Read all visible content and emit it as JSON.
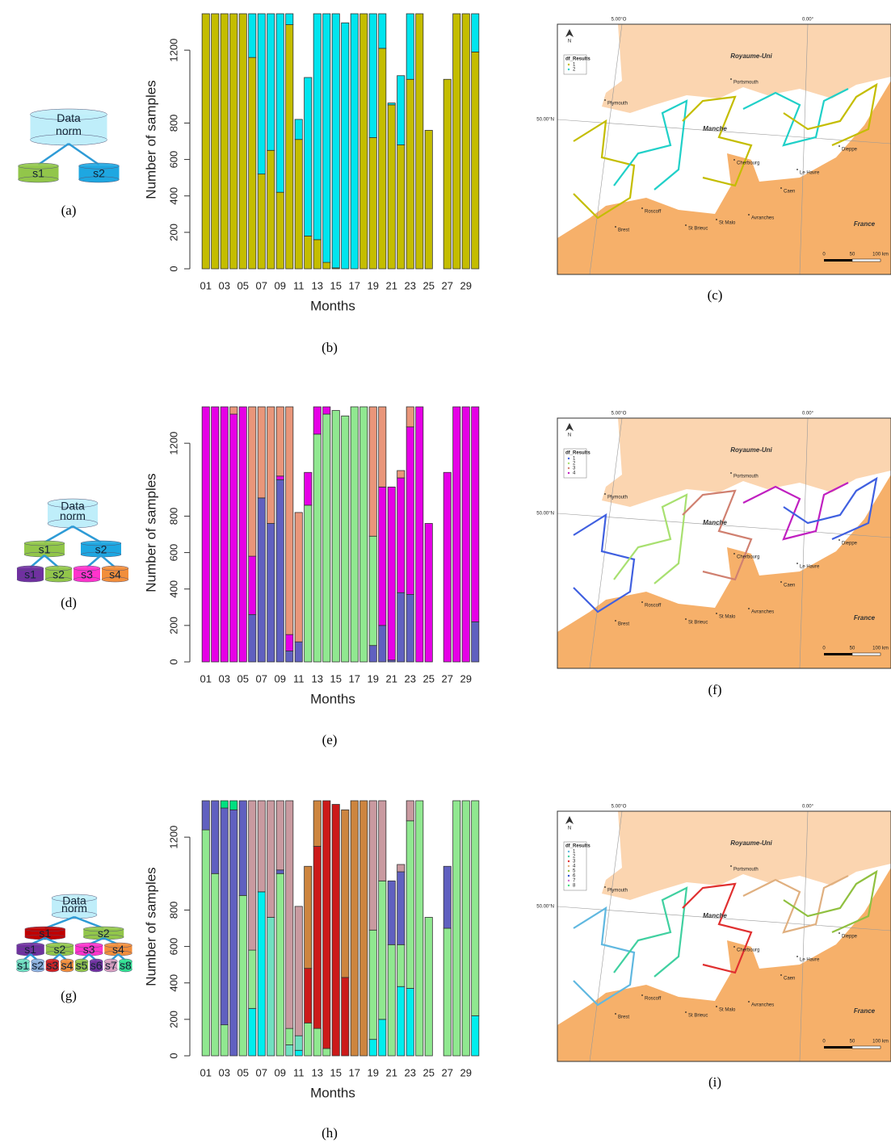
{
  "chart_data": [
    {
      "type": "bar",
      "stacked": true,
      "caption": "(b)",
      "x_label": "Months",
      "y_label": "Number of samples",
      "categories": [
        "01",
        null,
        "03",
        null,
        "05",
        null,
        "07",
        null,
        "09",
        null,
        "11",
        null,
        "13",
        null,
        "15",
        null,
        "17",
        null,
        "19",
        null,
        "21",
        null,
        "23",
        null,
        "25",
        null,
        "27",
        null,
        "29",
        null
      ],
      "ylim": [
        0,
        1400
      ],
      "yticks": [
        0,
        200,
        400,
        600,
        800,
        1200
      ],
      "series": [
        {
          "color": "#c4bd00",
          "values": [
            1400,
            1400,
            1400,
            1400,
            1400,
            1160,
            520,
            650,
            420,
            1340,
            710,
            180,
            160,
            35,
            5,
            0,
            0,
            1400,
            720,
            1210,
            900,
            680,
            1040,
            1400,
            760,
            0,
            1040,
            1400,
            1400,
            1190
          ]
        },
        {
          "color": "#00e5ee",
          "values": [
            0,
            0,
            0,
            0,
            0,
            240,
            880,
            750,
            980,
            60,
            110,
            870,
            1240,
            1365,
            1395,
            1350,
            1400,
            0,
            680,
            190,
            10,
            380,
            360,
            0,
            0,
            0,
            0,
            0,
            0,
            210
          ]
        }
      ]
    },
    {
      "type": "bar",
      "stacked": true,
      "caption": "(e)",
      "x_label": "Months",
      "y_label": "Number of samples",
      "categories": [
        "01",
        null,
        "03",
        null,
        "05",
        null,
        "07",
        null,
        "09",
        null,
        "11",
        null,
        "13",
        null,
        "15",
        null,
        "17",
        null,
        "19",
        null,
        "21",
        null,
        "23",
        null,
        "25",
        null,
        "27",
        null,
        "29",
        null
      ],
      "ylim": [
        0,
        1400
      ],
      "yticks": [
        0,
        200,
        400,
        600,
        800,
        1200
      ],
      "series": [
        {
          "color": "#6060c0",
          "values": [
            0,
            0,
            0,
            0,
            0,
            260,
            900,
            760,
            1000,
            60,
            110,
            0,
            0,
            0,
            0,
            0,
            0,
            0,
            90,
            200,
            10,
            380,
            370,
            0,
            0,
            0,
            0,
            0,
            0,
            220
          ]
        },
        {
          "color": "#90e890",
          "values": [
            0,
            0,
            0,
            0,
            0,
            0,
            0,
            0,
            0,
            0,
            0,
            860,
            1250,
            1360,
            1380,
            1350,
            1400,
            1400,
            600,
            0,
            0,
            0,
            0,
            0,
            0,
            0,
            0,
            0,
            0,
            0
          ]
        },
        {
          "color": "#e600e6",
          "values": [
            1400,
            1400,
            1400,
            1360,
            1400,
            320,
            0,
            0,
            20,
            90,
            0,
            180,
            150,
            40,
            0,
            0,
            0,
            0,
            0,
            760,
            950,
            630,
            920,
            1400,
            760,
            0,
            1040,
            1400,
            1400,
            1180
          ]
        },
        {
          "color": "#e9967a",
          "values": [
            0,
            0,
            0,
            40,
            0,
            820,
            500,
            640,
            380,
            1250,
            710,
            0,
            0,
            0,
            0,
            0,
            0,
            0,
            710,
            440,
            0,
            40,
            110,
            0,
            0,
            0,
            0,
            0,
            0,
            0
          ]
        }
      ]
    },
    {
      "type": "bar",
      "stacked": true,
      "caption": "(h)",
      "x_label": "Months",
      "y_label": "Number of samples",
      "categories": [
        "01",
        null,
        "03",
        null,
        "05",
        null,
        "07",
        null,
        "09",
        null,
        "11",
        null,
        "13",
        null,
        "15",
        null,
        "17",
        null,
        "19",
        null,
        "21",
        null,
        "23",
        null,
        "25",
        null,
        "27",
        null,
        "29",
        null
      ],
      "ylim": [
        0,
        1400
      ],
      "yticks": [
        0,
        200,
        400,
        600,
        800,
        1200
      ],
      "series": [
        {
          "color": "#00eeee",
          "values": [
            0,
            0,
            0,
            0,
            0,
            260,
            900,
            0,
            0,
            0,
            30,
            0,
            0,
            0,
            0,
            0,
            0,
            0,
            90,
            200,
            0,
            380,
            370,
            0,
            0,
            0,
            0,
            0,
            0,
            220
          ]
        },
        {
          "color": "#70e0c0",
          "values": [
            0,
            0,
            0,
            0,
            0,
            0,
            0,
            760,
            0,
            60,
            80,
            0,
            0,
            0,
            0,
            0,
            0,
            0,
            0,
            0,
            0,
            0,
            0,
            0,
            0,
            0,
            0,
            0,
            0,
            0
          ]
        },
        {
          "color": "#90e890",
          "values": [
            1240,
            1000,
            170,
            0,
            880,
            320,
            0,
            0,
            1000,
            90,
            0,
            180,
            150,
            40,
            0,
            0,
            0,
            0,
            600,
            760,
            610,
            230,
            920,
            1400,
            760,
            0,
            700,
            1400,
            1400,
            1180
          ]
        },
        {
          "color": "#6060c0",
          "values": [
            160,
            400,
            1190,
            1350,
            520,
            0,
            0,
            0,
            20,
            0,
            0,
            0,
            0,
            0,
            0,
            0,
            0,
            0,
            0,
            0,
            350,
            400,
            0,
            0,
            0,
            0,
            340,
            0,
            0,
            0
          ]
        },
        {
          "color": "#cc1a1a",
          "values": [
            0,
            0,
            0,
            0,
            0,
            0,
            0,
            0,
            0,
            0,
            0,
            300,
            1000,
            1360,
            1380,
            430,
            0,
            0,
            0,
            0,
            0,
            0,
            0,
            0,
            0,
            0,
            0,
            0,
            0,
            0
          ]
        },
        {
          "color": "#cd853f",
          "values": [
            0,
            0,
            0,
            0,
            0,
            0,
            0,
            0,
            0,
            0,
            0,
            560,
            250,
            0,
            0,
            920,
            1400,
            1400,
            0,
            0,
            0,
            0,
            0,
            0,
            0,
            0,
            0,
            0,
            0,
            0
          ]
        },
        {
          "color": "#c99aa0",
          "values": [
            0,
            0,
            0,
            0,
            0,
            820,
            500,
            640,
            380,
            1250,
            710,
            0,
            0,
            0,
            0,
            0,
            0,
            0,
            710,
            440,
            0,
            40,
            110,
            0,
            0,
            0,
            0,
            0,
            0,
            0
          ]
        },
        {
          "color": "#00e080",
          "values": [
            0,
            0,
            40,
            50,
            0,
            0,
            0,
            0,
            0,
            0,
            0,
            0,
            0,
            0,
            0,
            0,
            0,
            0,
            0,
            0,
            0,
            0,
            0,
            0,
            0,
            0,
            0,
            0,
            0,
            0
          ]
        }
      ]
    }
  ],
  "diagrams": [
    {
      "caption": "(a)",
      "root": [
        "Data",
        "norm"
      ],
      "levels": [
        [
          "s1",
          "s2"
        ]
      ]
    },
    {
      "caption": "(d)",
      "root": [
        "Data",
        "norm"
      ],
      "levels": [
        [
          "s1",
          "s2"
        ],
        [
          "s1",
          "s2",
          "s3",
          "s4"
        ]
      ]
    },
    {
      "caption": "(g)",
      "root": [
        "Data",
        "norm"
      ],
      "levels": [
        [
          "s1",
          "s2"
        ],
        [
          "s1",
          "s2",
          "s3",
          "s4"
        ],
        [
          "s1",
          "s2",
          "s3",
          "s4",
          "s5",
          "s6",
          "s7",
          "s8"
        ]
      ]
    }
  ],
  "map_labels": {
    "lon_west": "5.00°O",
    "lon_zero": "0.00°",
    "lat": "50.00°N",
    "uk": "Royaume-Uni",
    "france": "France",
    "sea": "Manche",
    "north": "N",
    "places": [
      "Plymouth",
      "Portsmouth",
      "Cherbourg",
      "Dieppe",
      "Le Havre",
      "Caen",
      "Roscoff",
      "Brest",
      "St Brieuc",
      "St Malo",
      "Avranches"
    ],
    "scale": [
      "0",
      "50",
      "100 km"
    ]
  },
  "maps": [
    {
      "caption": "(c)",
      "legend_title": "df_Results",
      "legend_items": [
        "1",
        "2"
      ],
      "legend_colors": [
        "#c4bd00",
        "#20d0c8"
      ]
    },
    {
      "caption": "(f)",
      "legend_title": "df_Results",
      "legend_items": [
        "1",
        "2",
        "3",
        "4"
      ],
      "legend_colors": [
        "#4060e0",
        "#a8e070",
        "#d08070",
        "#c020c0"
      ]
    },
    {
      "caption": "(i)",
      "legend_title": "df_Results",
      "legend_items": [
        "1",
        "2",
        "3",
        "4",
        "5",
        "6",
        "7",
        "8"
      ],
      "legend_colors": [
        "#60b8e0",
        "#40d0a0",
        "#e03030",
        "#e0b080",
        "#90c040",
        "#3050d0",
        "#d070d0",
        "#40e080"
      ]
    }
  ]
}
